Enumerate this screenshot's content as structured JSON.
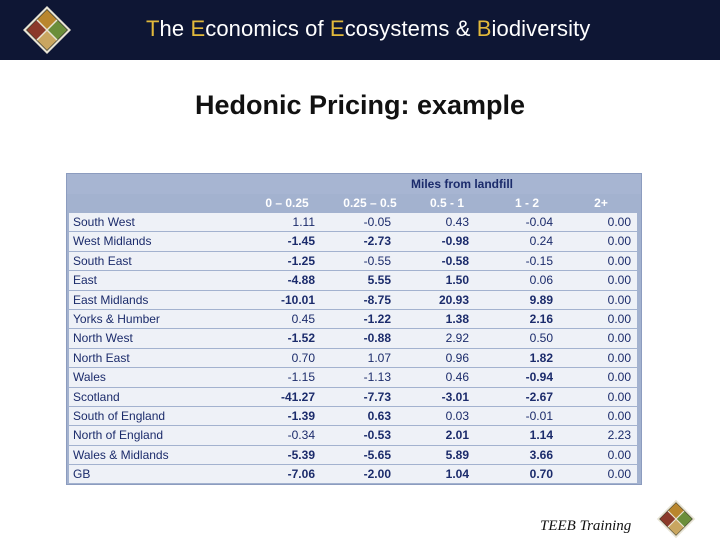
{
  "banner": {
    "parts": [
      {
        "cap": "T",
        "rest": "he "
      },
      {
        "cap": "E",
        "rest": "conomics of "
      },
      {
        "cap": "E",
        "rest": "cosystems & "
      },
      {
        "cap": "B",
        "rest": "iodiversity"
      }
    ]
  },
  "slide_title": "Hedonic Pricing: example",
  "table": {
    "group_header": "Miles from landfill",
    "columns": [
      "0 – 0.25",
      "0.25 – 0.5",
      "0.5 - 1",
      "1 - 2",
      "2+"
    ],
    "rows": [
      {
        "region": "South West",
        "values": [
          "1.11",
          "-0.05",
          "0.43",
          "-0.04",
          "0.00"
        ],
        "bold": [
          false,
          false,
          false,
          false,
          false
        ]
      },
      {
        "region": "West Midlands",
        "values": [
          "-1.45",
          "-2.73",
          "-0.98",
          "0.24",
          "0.00"
        ],
        "bold": [
          true,
          true,
          true,
          false,
          false
        ]
      },
      {
        "region": "South East",
        "values": [
          "-1.25",
          "-0.55",
          "-0.58",
          "-0.15",
          "0.00"
        ],
        "bold": [
          true,
          false,
          true,
          false,
          false
        ]
      },
      {
        "region": "East",
        "values": [
          "-4.88",
          "5.55",
          "1.50",
          "0.06",
          "0.00"
        ],
        "bold": [
          true,
          true,
          true,
          false,
          false
        ]
      },
      {
        "region": "East Midlands",
        "values": [
          "-10.01",
          "-8.75",
          "20.93",
          "9.89",
          "0.00"
        ],
        "bold": [
          true,
          true,
          true,
          true,
          false
        ]
      },
      {
        "region": "Yorks & Humber",
        "values": [
          "0.45",
          "-1.22",
          "1.38",
          "2.16",
          "0.00"
        ],
        "bold": [
          false,
          true,
          true,
          true,
          false
        ]
      },
      {
        "region": "North West",
        "values": [
          "-1.52",
          "-0.88",
          "2.92",
          "0.50",
          "0.00"
        ],
        "bold": [
          true,
          true,
          false,
          false,
          false
        ]
      },
      {
        "region": "North East",
        "values": [
          "0.70",
          "1.07",
          "0.96",
          "1.82",
          "0.00"
        ],
        "bold": [
          false,
          false,
          false,
          true,
          false
        ]
      },
      {
        "region": "Wales",
        "values": [
          "-1.15",
          "-1.13",
          "0.46",
          "-0.94",
          "0.00"
        ],
        "bold": [
          false,
          false,
          false,
          true,
          false
        ]
      },
      {
        "region": "Scotland",
        "values": [
          "-41.27",
          "-7.73",
          "-3.01",
          "-2.67",
          "0.00"
        ],
        "bold": [
          true,
          true,
          true,
          true,
          false
        ]
      },
      {
        "region": "South of England",
        "values": [
          "-1.39",
          "0.63",
          "0.03",
          "-0.01",
          "0.00"
        ],
        "bold": [
          true,
          true,
          false,
          false,
          false
        ]
      },
      {
        "region": "North of England",
        "values": [
          "-0.34",
          "-0.53",
          "2.01",
          "1.14",
          "2.23"
        ],
        "bold": [
          false,
          true,
          true,
          true,
          false
        ]
      },
      {
        "region": "Wales & Midlands",
        "values": [
          "-5.39",
          "-5.65",
          "5.89",
          "3.66",
          "0.00"
        ],
        "bold": [
          true,
          true,
          true,
          true,
          false
        ]
      },
      {
        "region": "GB",
        "values": [
          "-7.06",
          "-2.00",
          "1.04",
          "0.70",
          "0.00"
        ],
        "bold": [
          true,
          true,
          true,
          true,
          false
        ]
      }
    ]
  },
  "footer": "TEEB Training",
  "colors": {
    "banner_bg": "#0e1634",
    "banner_accent": "#e2b93b",
    "table_header_bg": "#a3b2cf",
    "table_row_bg": "#eef1f7",
    "table_text": "#1b2b6b"
  }
}
